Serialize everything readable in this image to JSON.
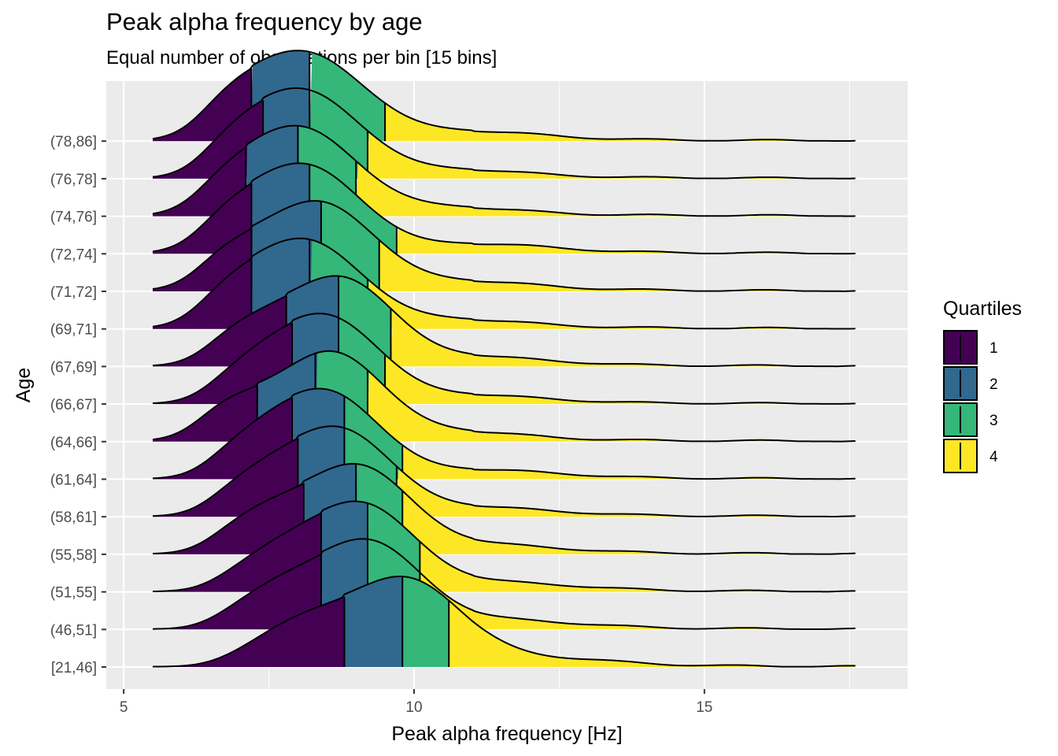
{
  "chart_data": {
    "type": "ridgeline",
    "title": "Peak alpha frequency by age",
    "subtitle": "Equal number of observations per bin [15 bins]",
    "xlabel": "Peak alpha frequency [Hz]",
    "ylabel": "Age",
    "xlim": [
      4.7,
      18.5
    ],
    "x_ticks": [
      5,
      10,
      15
    ],
    "x_tick_labels": [
      "5",
      "10",
      "15"
    ],
    "grid": true,
    "legend": {
      "title": "Quartiles",
      "position": "right",
      "items": [
        {
          "label": "1",
          "color": "#440154"
        },
        {
          "label": "2",
          "color": "#31688E"
        },
        {
          "label": "3",
          "color": "#35B779"
        },
        {
          "label": "4",
          "color": "#FDE725"
        }
      ]
    },
    "series": [
      {
        "name": "[21,46]",
        "quartiles": [
          8.8,
          9.8,
          10.6
        ],
        "peak": 9.9,
        "spread": 0.9
      },
      {
        "name": "(46,51]",
        "quartiles": [
          8.4,
          9.2,
          10.1
        ],
        "peak": 9.3,
        "spread": 0.85
      },
      {
        "name": "(51,55]",
        "quartiles": [
          8.4,
          9.2,
          10.1
        ],
        "peak": 9.2,
        "spread": 0.85
      },
      {
        "name": "(55,58]",
        "quartiles": [
          8.1,
          9.0,
          9.8
        ],
        "peak": 9.1,
        "spread": 0.85
      },
      {
        "name": "(58,61]",
        "quartiles": [
          8.0,
          8.8,
          9.7
        ],
        "peak": 8.8,
        "spread": 0.85
      },
      {
        "name": "(61,64]",
        "quartiles": [
          7.9,
          8.8,
          9.8
        ],
        "peak": 8.6,
        "spread": 0.85
      },
      {
        "name": "(64,66]",
        "quartiles": [
          7.3,
          8.3,
          9.2
        ],
        "peak": 8.6,
        "spread": 0.85
      },
      {
        "name": "(66,67]",
        "quartiles": [
          7.9,
          8.7,
          9.5
        ],
        "peak": 8.6,
        "spread": 0.85
      },
      {
        "name": "(67,69]",
        "quartiles": [
          7.8,
          8.7,
          9.6
        ],
        "peak": 8.8,
        "spread": 0.85
      },
      {
        "name": "(69,71]",
        "quartiles": [
          7.2,
          8.2,
          9.2
        ],
        "peak": 8.2,
        "spread": 0.9
      },
      {
        "name": "(71,72]",
        "quartiles": [
          7.2,
          8.4,
          9.4
        ],
        "peak": 8.4,
        "spread": 0.9
      },
      {
        "name": "(72,74]",
        "quartiles": [
          7.2,
          8.2,
          9.7
        ],
        "peak": 8.2,
        "spread": 0.9
      },
      {
        "name": "(74,76]",
        "quartiles": [
          7.1,
          8.0,
          9.0
        ],
        "peak": 8.1,
        "spread": 0.9
      },
      {
        "name": "(76,78]",
        "quartiles": [
          7.4,
          8.2,
          9.2
        ],
        "peak": 8.2,
        "spread": 0.9
      },
      {
        "name": "(78,86]",
        "quartiles": [
          7.2,
          8.2,
          9.5
        ],
        "peak": 8.2,
        "spread": 0.95
      }
    ]
  }
}
